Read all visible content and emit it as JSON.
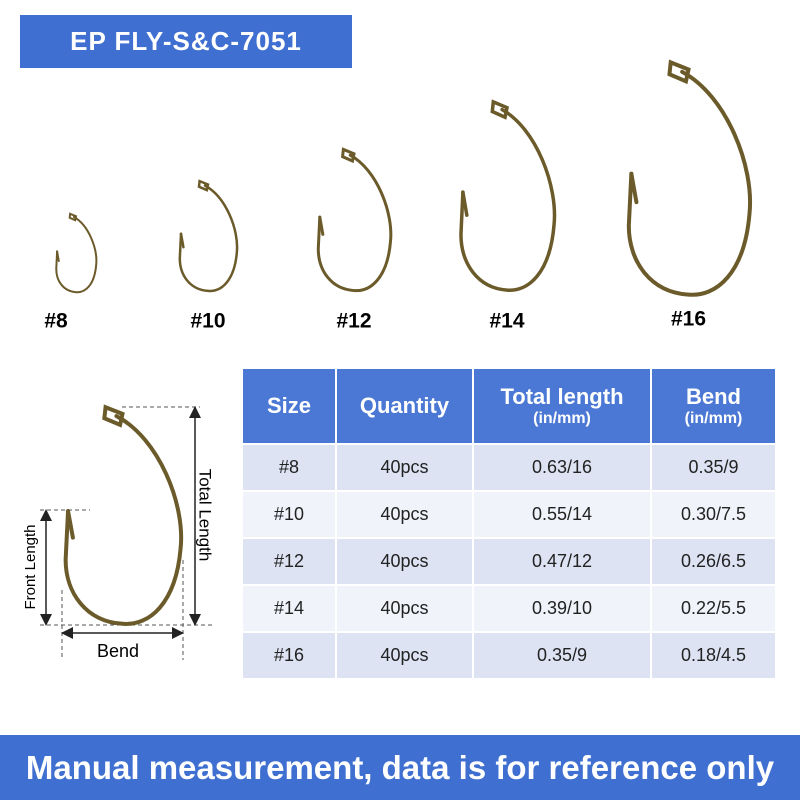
{
  "title": "EP FLY-S&C-7051",
  "hooks": [
    {
      "label": "#8"
    },
    {
      "label": "#10"
    },
    {
      "label": "#12"
    },
    {
      "label": "#14"
    },
    {
      "label": "#16"
    }
  ],
  "diagram": {
    "total_length": "Total Length",
    "front_length": "Front Length",
    "bend": "Bend"
  },
  "table": {
    "header": [
      {
        "text": "Size"
      },
      {
        "text": "Quantity"
      },
      {
        "text": "Total length",
        "unit": "(in/mm)"
      },
      {
        "text": "Bend",
        "unit": "(in/mm)"
      }
    ],
    "rows": [
      [
        "#8",
        "40pcs",
        "0.63/16",
        "0.35/9"
      ],
      [
        "#10",
        "40pcs",
        "0.55/14",
        "0.30/7.5"
      ],
      [
        "#12",
        "40pcs",
        "0.47/12",
        "0.26/6.5"
      ],
      [
        "#14",
        "40pcs",
        "0.39/10",
        "0.22/5.5"
      ],
      [
        "#16",
        "40pcs",
        "0.35/9",
        "0.18/4.5"
      ]
    ]
  },
  "footer": "Manual measurement, data is for reference only"
}
